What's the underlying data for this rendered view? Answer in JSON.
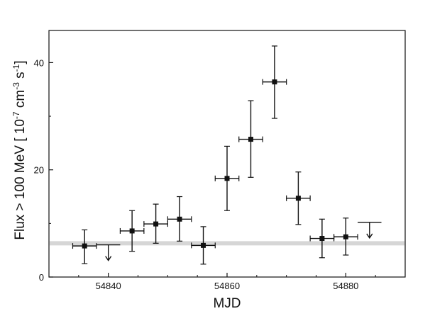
{
  "chart_data": {
    "type": "scatter",
    "title": "",
    "xlabel": "MJD",
    "ylabel_prefix": "Flux > 100 MeV [ 10",
    "ylabel_exp1": "-7",
    "ylabel_mid": " cm",
    "ylabel_exp2": "-3",
    "ylabel_mid2": " s",
    "ylabel_exp3": "-1",
    "ylabel_suffix": "]",
    "xlim": [
      54830,
      54890
    ],
    "ylim": [
      0,
      46
    ],
    "x_ticks": [
      54840,
      54860,
      54880
    ],
    "x_tick_labels": [
      "54840",
      "54860",
      "54880"
    ],
    "y_ticks": [
      0,
      20,
      40
    ],
    "y_tick_labels": [
      "0",
      "20",
      "40"
    ],
    "baseline": 6.3,
    "baseline_color": "#d6d6d6",
    "marker_color": "#111111",
    "points": [
      {
        "x": 54836,
        "xerr": 2,
        "y": 5.8,
        "ylo": 2.5,
        "yhi": 8.8
      },
      {
        "x": 54844,
        "xerr": 2,
        "y": 8.6,
        "ylo": 4.8,
        "yhi": 12.4
      },
      {
        "x": 54848,
        "xerr": 2,
        "y": 9.9,
        "ylo": 6.3,
        "yhi": 13.6
      },
      {
        "x": 54852,
        "xerr": 2,
        "y": 10.8,
        "ylo": 6.7,
        "yhi": 15.0
      },
      {
        "x": 54856,
        "xerr": 2,
        "y": 5.9,
        "ylo": 2.4,
        "yhi": 9.4
      },
      {
        "x": 54860,
        "xerr": 2,
        "y": 18.4,
        "ylo": 12.4,
        "yhi": 24.4
      },
      {
        "x": 54864,
        "xerr": 2,
        "y": 25.7,
        "ylo": 18.6,
        "yhi": 32.9
      },
      {
        "x": 54868,
        "xerr": 2,
        "y": 36.4,
        "ylo": 29.6,
        "yhi": 43.1
      },
      {
        "x": 54872,
        "xerr": 2,
        "y": 14.7,
        "ylo": 9.8,
        "yhi": 19.6
      },
      {
        "x": 54876,
        "xerr": 2,
        "y": 7.2,
        "ylo": 3.6,
        "yhi": 10.8
      },
      {
        "x": 54880,
        "xerr": 2,
        "y": 7.5,
        "ylo": 4.1,
        "yhi": 11.0
      }
    ],
    "upper_limits": [
      {
        "x": 54840,
        "xerr": 2,
        "y": 6.0
      },
      {
        "x": 54884,
        "xerr": 2,
        "y": 10.2
      }
    ]
  }
}
